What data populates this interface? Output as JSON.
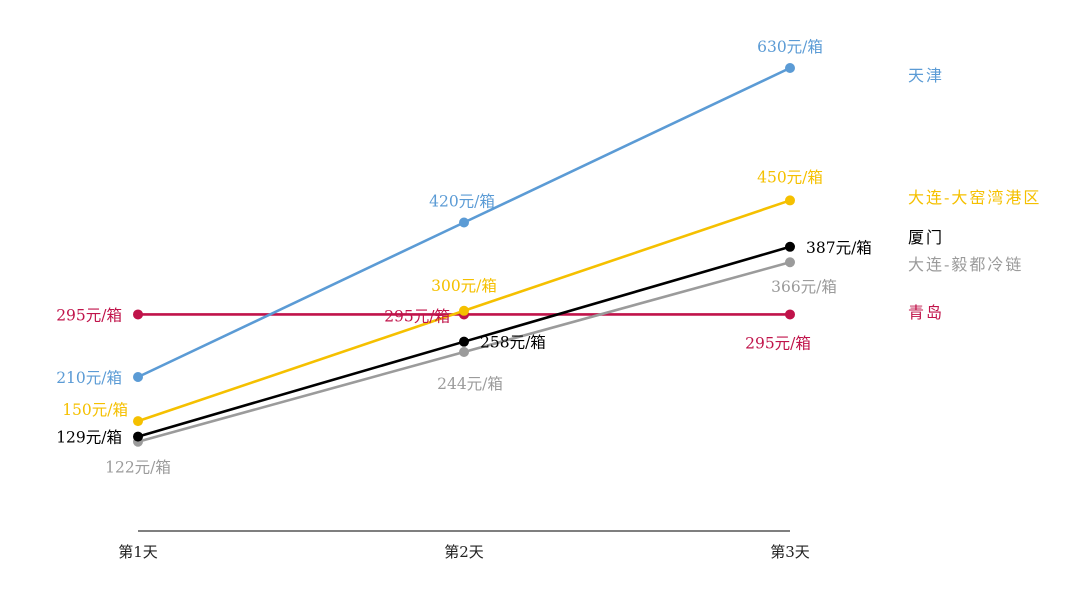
{
  "chart_data": {
    "type": "line",
    "categories": [
      "第1天",
      "第2天",
      "第3天"
    ],
    "ylim": [
      0,
      630
    ],
    "grid": false,
    "legend_placement": "right",
    "series": [
      {
        "name": "天津",
        "color": "#5b9bd5",
        "values": [
          210,
          420,
          630
        ],
        "labels": [
          "210元/箱",
          "420元/箱",
          "630元/箱"
        ]
      },
      {
        "name": "大连-大窑湾港区",
        "color": "#f5c000",
        "values": [
          150,
          300,
          450
        ],
        "labels": [
          "150元/箱",
          "300元/箱",
          "450元/箱"
        ]
      },
      {
        "name": "厦门",
        "color": "#000000",
        "values": [
          129,
          258,
          387
        ],
        "labels": [
          "129元/箱",
          "258元/箱",
          "387元/箱"
        ]
      },
      {
        "name": "大连-毅都冷链",
        "color": "#9b9b9b",
        "values": [
          122,
          244,
          366
        ],
        "labels": [
          "122元/箱",
          "244元/箱",
          "366元/箱"
        ]
      },
      {
        "name": "青岛",
        "color": "#c0134a",
        "values": [
          295,
          295,
          295
        ],
        "labels": [
          "295元/箱",
          "295元/箱",
          "295元/箱"
        ]
      }
    ]
  }
}
